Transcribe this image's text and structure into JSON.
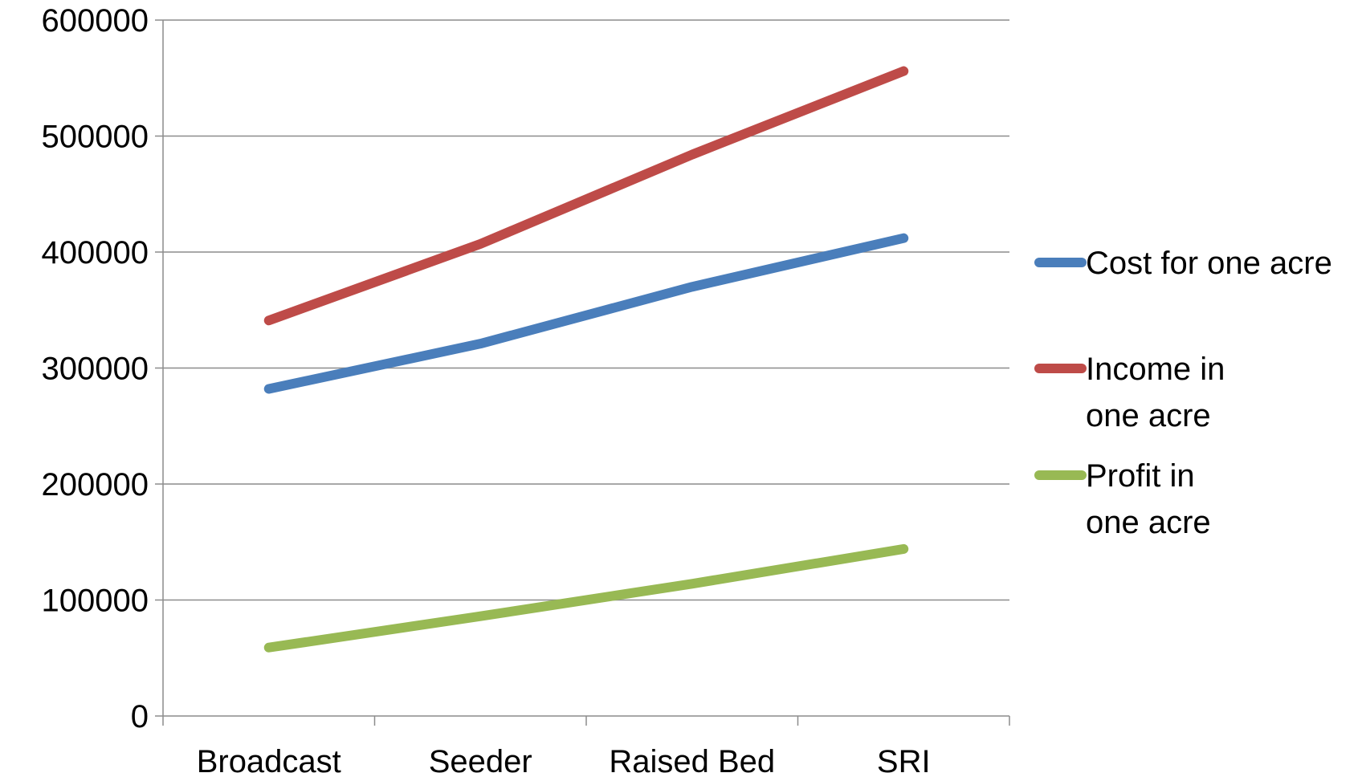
{
  "chart_data": {
    "type": "line",
    "title": "",
    "xlabel": "",
    "ylabel": "",
    "categories": [
      "Broadcast",
      "Seeder",
      "Raised Bed",
      "SRI"
    ],
    "ylim": [
      0,
      600000
    ],
    "yticks": [
      "0",
      "100000",
      "200000",
      "300000",
      "400000",
      "500000",
      "600000"
    ],
    "grid": "horizontal",
    "legend_position": "right",
    "series": [
      {
        "name": "Cost for one acre",
        "name_lines": [
          "Cost for one acre"
        ],
        "color": "#4a7ebb",
        "values": [
          282000,
          321000,
          370000,
          412000
        ]
      },
      {
        "name": "Income in one acre",
        "name_lines": [
          "Income in",
          "one acre"
        ],
        "color": "#be4b48",
        "values": [
          341000,
          407000,
          484000,
          556000
        ]
      },
      {
        "name": "Profit in one acre",
        "name_lines": [
          "Profit in",
          "one acre"
        ],
        "color": "#98b954",
        "values": [
          59000,
          86000,
          114000,
          144000
        ]
      }
    ]
  }
}
